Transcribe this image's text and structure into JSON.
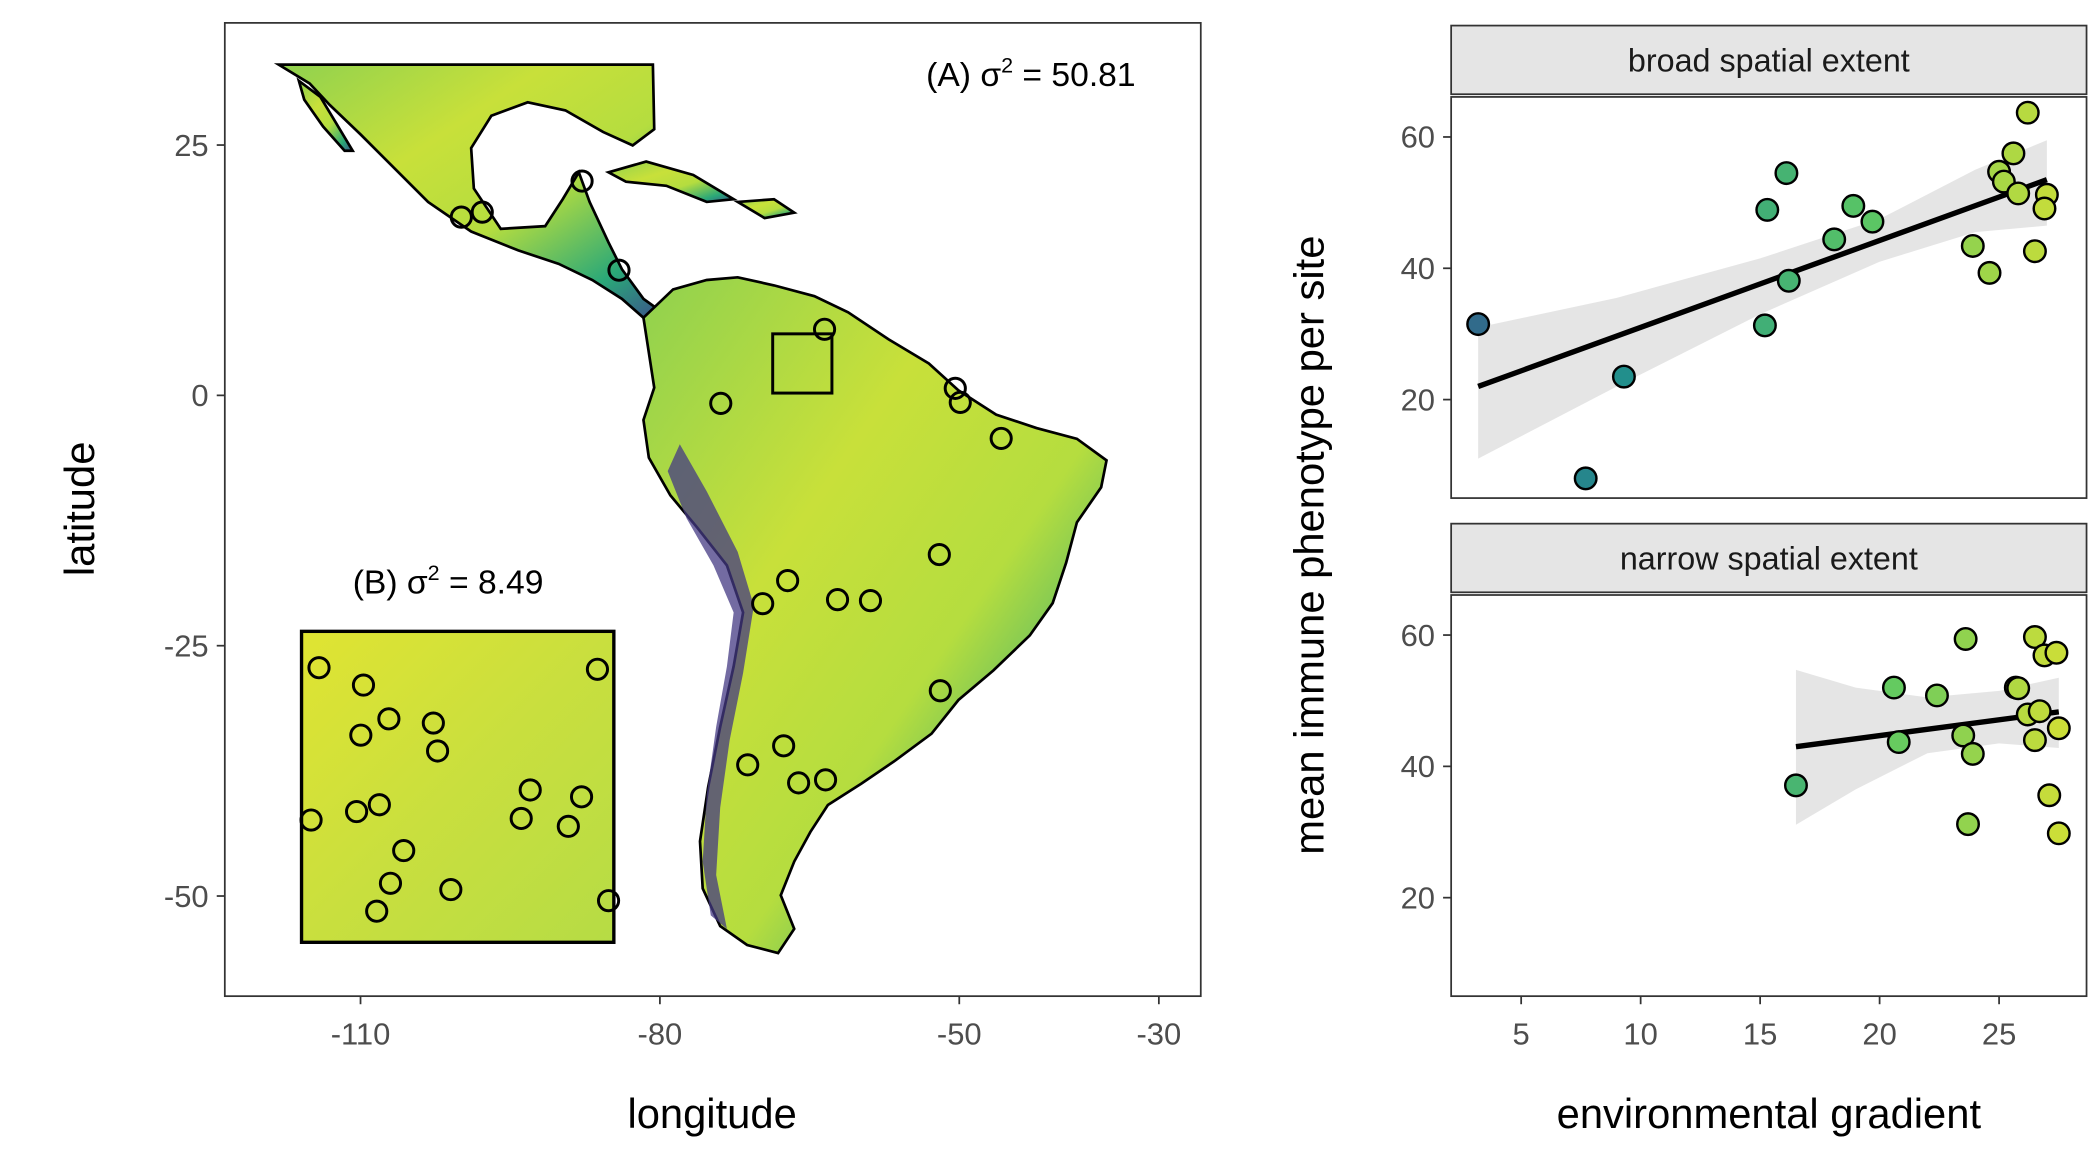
{
  "chart_data": [
    {
      "type": "map",
      "panel": "map",
      "xlabel": "longitude",
      "ylabel": "latitude",
      "xticks": [
        -110,
        -80,
        -50,
        -30
      ],
      "yticks": [
        25,
        0,
        -25,
        -50
      ],
      "xlim": [
        -123.6,
        -25.8
      ],
      "ylim": [
        -60,
        37.2
      ],
      "annotation_a": {
        "label": "(A) σ",
        "sup": "2",
        "value": " = 50.81"
      },
      "annotation_b": {
        "label": "(B) σ",
        "sup": "2",
        "value": " = 8.49"
      },
      "land_colors": {
        "high": "#d9e030",
        "mid": "#8fd14f",
        "low": "#2aa878",
        "mountain": "#443983"
      },
      "inset_extent": {
        "lon": [
          -67.8,
          -61.9
        ],
        "lat": [
          0.1,
          6.0
        ]
      },
      "sites": [
        [
          -87.8,
          21.4
        ],
        [
          -99.9,
          17.8
        ],
        [
          -97.8,
          18.3
        ],
        [
          -84.1,
          12.5
        ],
        [
          -63.5,
          6.6
        ],
        [
          -73.9,
          -0.8
        ],
        [
          -50.4,
          0.7
        ],
        [
          -49.9,
          -0.7
        ],
        [
          -45.8,
          -4.3
        ],
        [
          -52.0,
          -15.9
        ],
        [
          -67.2,
          -18.5
        ],
        [
          -69.7,
          -20.8
        ],
        [
          -62.2,
          -20.4
        ],
        [
          -58.9,
          -20.5
        ],
        [
          -51.9,
          -29.5
        ],
        [
          -67.6,
          -35.0
        ],
        [
          -71.2,
          -36.9
        ],
        [
          -66.1,
          -38.7
        ],
        [
          -63.4,
          -38.4
        ]
      ],
      "inset_sites": [
        [
          -67.47,
          5.31
        ],
        [
          -66.63,
          4.98
        ],
        [
          -66.68,
          4.03
        ],
        [
          -66.15,
          4.34
        ],
        [
          -65.31,
          4.26
        ],
        [
          -65.23,
          3.73
        ],
        [
          -62.21,
          5.28
        ],
        [
          -63.48,
          2.99
        ],
        [
          -63.65,
          2.45
        ],
        [
          -62.51,
          2.86
        ],
        [
          -62.76,
          2.3
        ],
        [
          -67.62,
          2.42
        ],
        [
          -66.76,
          2.58
        ],
        [
          -66.33,
          2.71
        ],
        [
          -65.87,
          1.84
        ],
        [
          -66.12,
          1.22
        ],
        [
          -66.38,
          0.69
        ],
        [
          -64.98,
          1.1
        ],
        [
          -62.0,
          0.89
        ]
      ]
    },
    {
      "type": "scatter",
      "panel": "facets",
      "xlabel": "environmental gradient",
      "ylabel": "mean immune phenotype per site",
      "xticks": [
        5,
        10,
        15,
        20,
        25
      ],
      "yticks": [
        20,
        40,
        60
      ],
      "xlim": [
        2.07,
        28.66
      ],
      "ylim": [
        5.0,
        66.1
      ],
      "facets": [
        {
          "title": "broad spatial extent",
          "points": [
            [
              3.2,
              31.5
            ],
            [
              9.3,
              23.5
            ],
            [
              7.7,
              8.0
            ],
            [
              15.2,
              31.3
            ],
            [
              16.2,
              38.1
            ],
            [
              15.3,
              48.9
            ],
            [
              16.1,
              54.5
            ],
            [
              18.1,
              44.4
            ],
            [
              18.9,
              49.5
            ],
            [
              19.7,
              47.1
            ],
            [
              23.9,
              43.4
            ],
            [
              24.6,
              39.3
            ],
            [
              25.0,
              54.7
            ],
            [
              25.2,
              53.2
            ],
            [
              25.6,
              57.5
            ],
            [
              25.8,
              51.4
            ],
            [
              26.2,
              63.7
            ],
            [
              26.5,
              42.6
            ],
            [
              27.0,
              51.2
            ],
            [
              26.9,
              49.1
            ]
          ],
          "fit": {
            "x": [
              3.2,
              27.0
            ],
            "y": [
              22.0,
              53.5
            ]
          },
          "ci": {
            "x": [
              3.2,
              9,
              15,
              20,
              24,
              27.0
            ],
            "lower": [
              11.0,
              22.0,
              33.0,
              41.0,
              45.5,
              46.5
            ],
            "upper": [
              31.0,
              35.5,
              41.5,
              47.5,
              55.0,
              59.5
            ]
          }
        },
        {
          "title": "narrow spatial extent",
          "points": [
            [
              16.5,
              37.1
            ],
            [
              20.6,
              52.0
            ],
            [
              20.8,
              43.7
            ],
            [
              22.4,
              50.8
            ],
            [
              23.6,
              59.4
            ],
            [
              23.5,
              44.7
            ],
            [
              23.9,
              41.9
            ],
            [
              23.7,
              31.2
            ],
            [
              25.7,
              52.0
            ],
            [
              25.8,
              51.9
            ],
            [
              26.2,
              47.9
            ],
            [
              26.7,
              48.4
            ],
            [
              26.5,
              59.7
            ],
            [
              26.9,
              56.9
            ],
            [
              27.4,
              57.3
            ],
            [
              26.5,
              44.0
            ],
            [
              27.5,
              45.8
            ],
            [
              27.1,
              35.6
            ],
            [
              27.5,
              29.8
            ]
          ],
          "fit": {
            "x": [
              16.5,
              27.5
            ],
            "y": [
              43.0,
              48.3
            ]
          },
          "ci": {
            "x": [
              16.5,
              19,
              22,
              25,
              27.5
            ],
            "lower": [
              31.1,
              36.5,
              42.0,
              43.5,
              42.8
            ],
            "upper": [
              54.7,
              52.0,
              50.5,
              51.5,
              53.5
            ]
          }
        }
      ]
    }
  ]
}
